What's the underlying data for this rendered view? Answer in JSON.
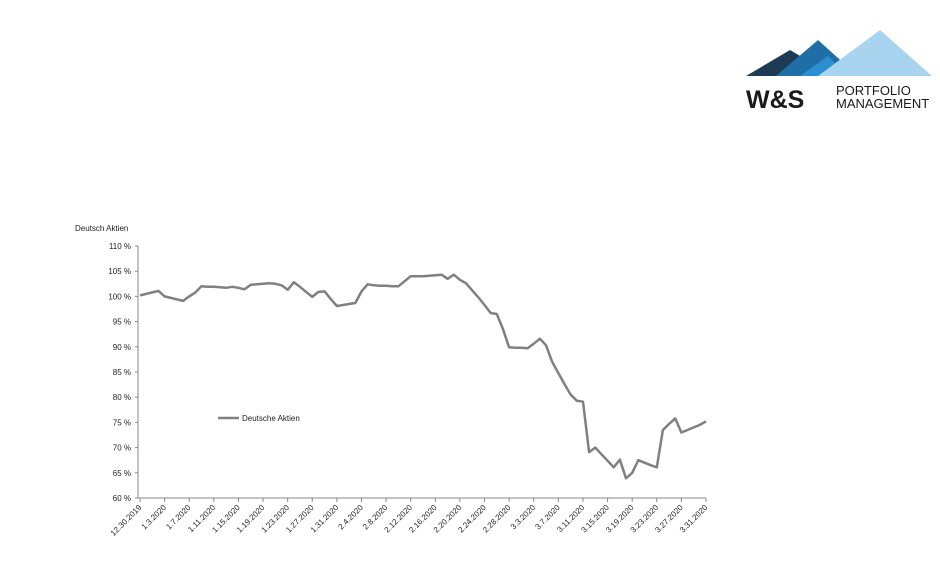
{
  "logo": {
    "brand": "W&S",
    "line1": "PORTFOLIO",
    "line2": "MANAGEMENT"
  },
  "chart_data": {
    "type": "line",
    "axis_title": "Deutsch Aktien",
    "categories": [
      "12.30.2019",
      null,
      null,
      null,
      "1.3.2020",
      null,
      null,
      null,
      "1.7.2020",
      null,
      null,
      null,
      "1.11.2020",
      null,
      null,
      null,
      "1.15.2020",
      null,
      null,
      null,
      "1.19.2020",
      null,
      null,
      null,
      "1.23.2020",
      null,
      null,
      null,
      "1.27.2020",
      null,
      null,
      null,
      "1.31.2020",
      null,
      null,
      null,
      "2.4.2020",
      null,
      null,
      null,
      "2.8.2020",
      null,
      null,
      null,
      "2.12.2020",
      null,
      null,
      null,
      "2.16.2020",
      null,
      null,
      null,
      "2.20.2020",
      null,
      null,
      null,
      "2.24.2020",
      null,
      null,
      null,
      "2.28.2020",
      null,
      null,
      null,
      "3.3.2020",
      null,
      null,
      null,
      "3.7.2020",
      null,
      null,
      null,
      "3.11.2020",
      null,
      null,
      null,
      "3.15.2020",
      null,
      null,
      null,
      "3.19.2020",
      null,
      null,
      null,
      "3.23.2020",
      null,
      null,
      null,
      "3.27.2020",
      null,
      null,
      null,
      "3.31.2020"
    ],
    "series": [
      {
        "name": "Deutsche Aktien",
        "color": "#808080",
        "values": [
          100.2,
          100.5,
          100.8,
          101.1,
          100.0,
          99.7,
          99.4,
          99.1,
          100.0,
          100.8,
          102.0,
          101.9,
          101.9,
          101.8,
          101.7,
          101.9,
          101.7,
          101.4,
          102.3,
          102.4,
          102.5,
          102.6,
          102.5,
          102.2,
          101.3,
          102.8,
          101.9,
          100.9,
          99.9,
          100.9,
          101.0,
          99.5,
          98.1,
          98.3,
          98.5,
          98.7,
          101.0,
          102.4,
          102.2,
          102.1,
          102.1,
          102.0,
          102.0,
          103.0,
          104.0,
          104.0,
          104.0,
          104.1,
          104.2,
          104.3,
          103.5,
          104.3,
          103.3,
          102.6,
          101.2,
          99.8,
          98.3,
          96.7,
          96.5,
          93.5,
          89.9,
          89.8,
          89.8,
          89.7,
          90.6,
          91.6,
          90.3,
          87.0,
          84.8,
          82.6,
          80.5,
          79.3,
          79.1,
          69.1,
          70.0,
          68.7,
          67.4,
          66.1,
          67.6,
          63.9,
          65.0,
          67.5,
          67.0,
          66.5,
          66.1,
          73.5,
          74.7,
          75.8,
          73.0,
          73.5,
          74.0,
          74.5,
          75.2
        ]
      }
    ],
    "ylim": [
      60,
      110
    ],
    "yticks": [
      {
        "value": 60,
        "label": "60 %"
      },
      {
        "value": 65,
        "label": "65 %"
      },
      {
        "value": 70,
        "label": "70 %"
      },
      {
        "value": 75,
        "label": "75 %"
      },
      {
        "value": 80,
        "label": "80 %"
      },
      {
        "value": 85,
        "label": "85 %"
      },
      {
        "value": 90,
        "label": "90 %"
      },
      {
        "value": 95,
        "label": "95 %"
      },
      {
        "value": 100,
        "label": "100 %"
      },
      {
        "value": 105,
        "label": "105 %"
      },
      {
        "value": 110,
        "label": "110 %"
      }
    ],
    "legend": "left"
  }
}
